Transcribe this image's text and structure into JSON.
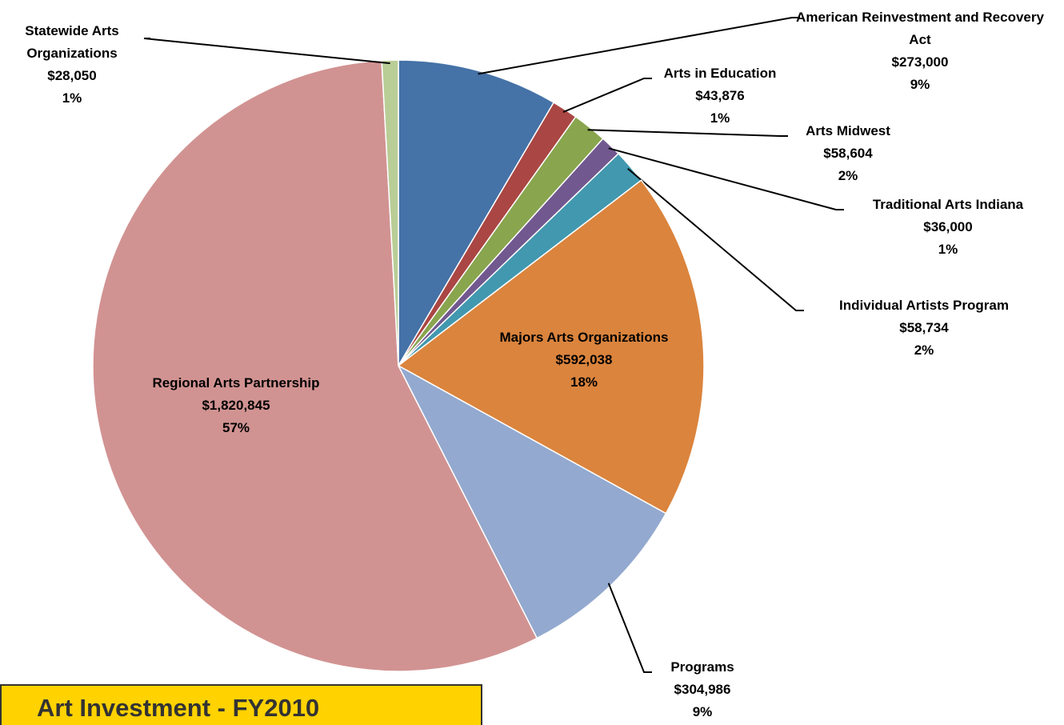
{
  "chart_data": {
    "type": "pie",
    "title": "Art Investment - FY2010",
    "categories": [
      "American Reinvestment and Recovery Act",
      "Arts in Education",
      "Arts Midwest",
      "Traditional Arts Indiana",
      "Individual Artists Program",
      "Majors Arts Organizations",
      "Programs",
      "Regional Arts Partnership",
      "Statewide Arts Organizations"
    ],
    "values": [
      273000,
      43876,
      58604,
      36000,
      58734,
      592038,
      304986,
      1820845,
      28050
    ],
    "value_labels": [
      "$273,000",
      "$43,876",
      "$58,604",
      "$36,000",
      "$58,734",
      "$592,038",
      "$304,986",
      "$1,820,845",
      "$28,050"
    ],
    "percent_labels": [
      "9%",
      "1%",
      "2%",
      "1%",
      "2%",
      "18%",
      "9%",
      "57%",
      "1%"
    ],
    "colors": [
      "#4572A7",
      "#AA4643",
      "#89A54E",
      "#71588F",
      "#4198AF",
      "#DB843D",
      "#93A9CF",
      "#D19392",
      "#B9CD96"
    ]
  }
}
